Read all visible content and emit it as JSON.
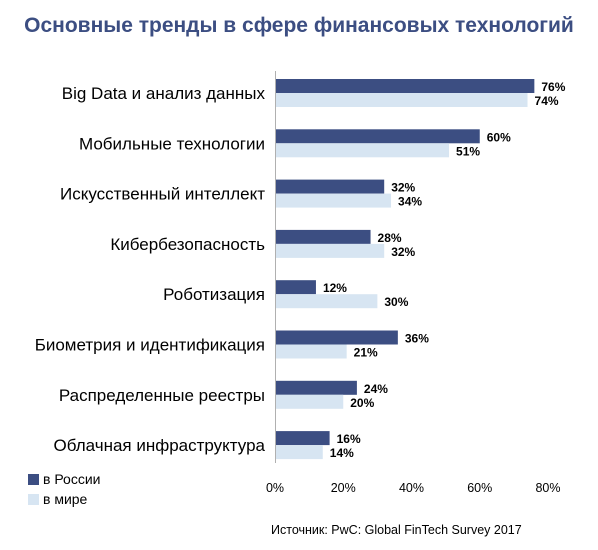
{
  "chart_data": {
    "type": "bar",
    "orientation": "horizontal",
    "title": "Основные тренды в сфере финансовых технологий",
    "categories": [
      "Big Data и анализ данных",
      "Мобильные технологии",
      "Искусственный интеллект",
      "Кибербезопасность",
      "Роботизация",
      "Биометрия и идентификация",
      "Распределенные реестры",
      "Облачная инфраструктура"
    ],
    "series": [
      {
        "name": "в России",
        "values": [
          76,
          60,
          32,
          28,
          12,
          36,
          24,
          16
        ],
        "labels": [
          "76%",
          "60%",
          "32%",
          "28%",
          "12%",
          "36%",
          "24%",
          "16%"
        ],
        "color": "#3c4e82"
      },
      {
        "name": "в мире",
        "values": [
          74,
          51,
          34,
          32,
          30,
          21,
          20,
          14
        ],
        "labels": [
          "74%",
          "51%",
          "34%",
          "32%",
          "30%",
          "21%",
          "20%",
          "14%"
        ],
        "color": "#d7e5f2"
      }
    ],
    "xlim": [
      0,
      80
    ],
    "xticks": [
      0,
      20,
      40,
      60,
      80
    ],
    "xtick_labels": [
      "0%",
      "20%",
      "40%",
      "60%",
      "80%"
    ],
    "grid": false,
    "legend_position": "bottom-left"
  },
  "source": "Источник: PwC: Global FinTech Survey 2017"
}
